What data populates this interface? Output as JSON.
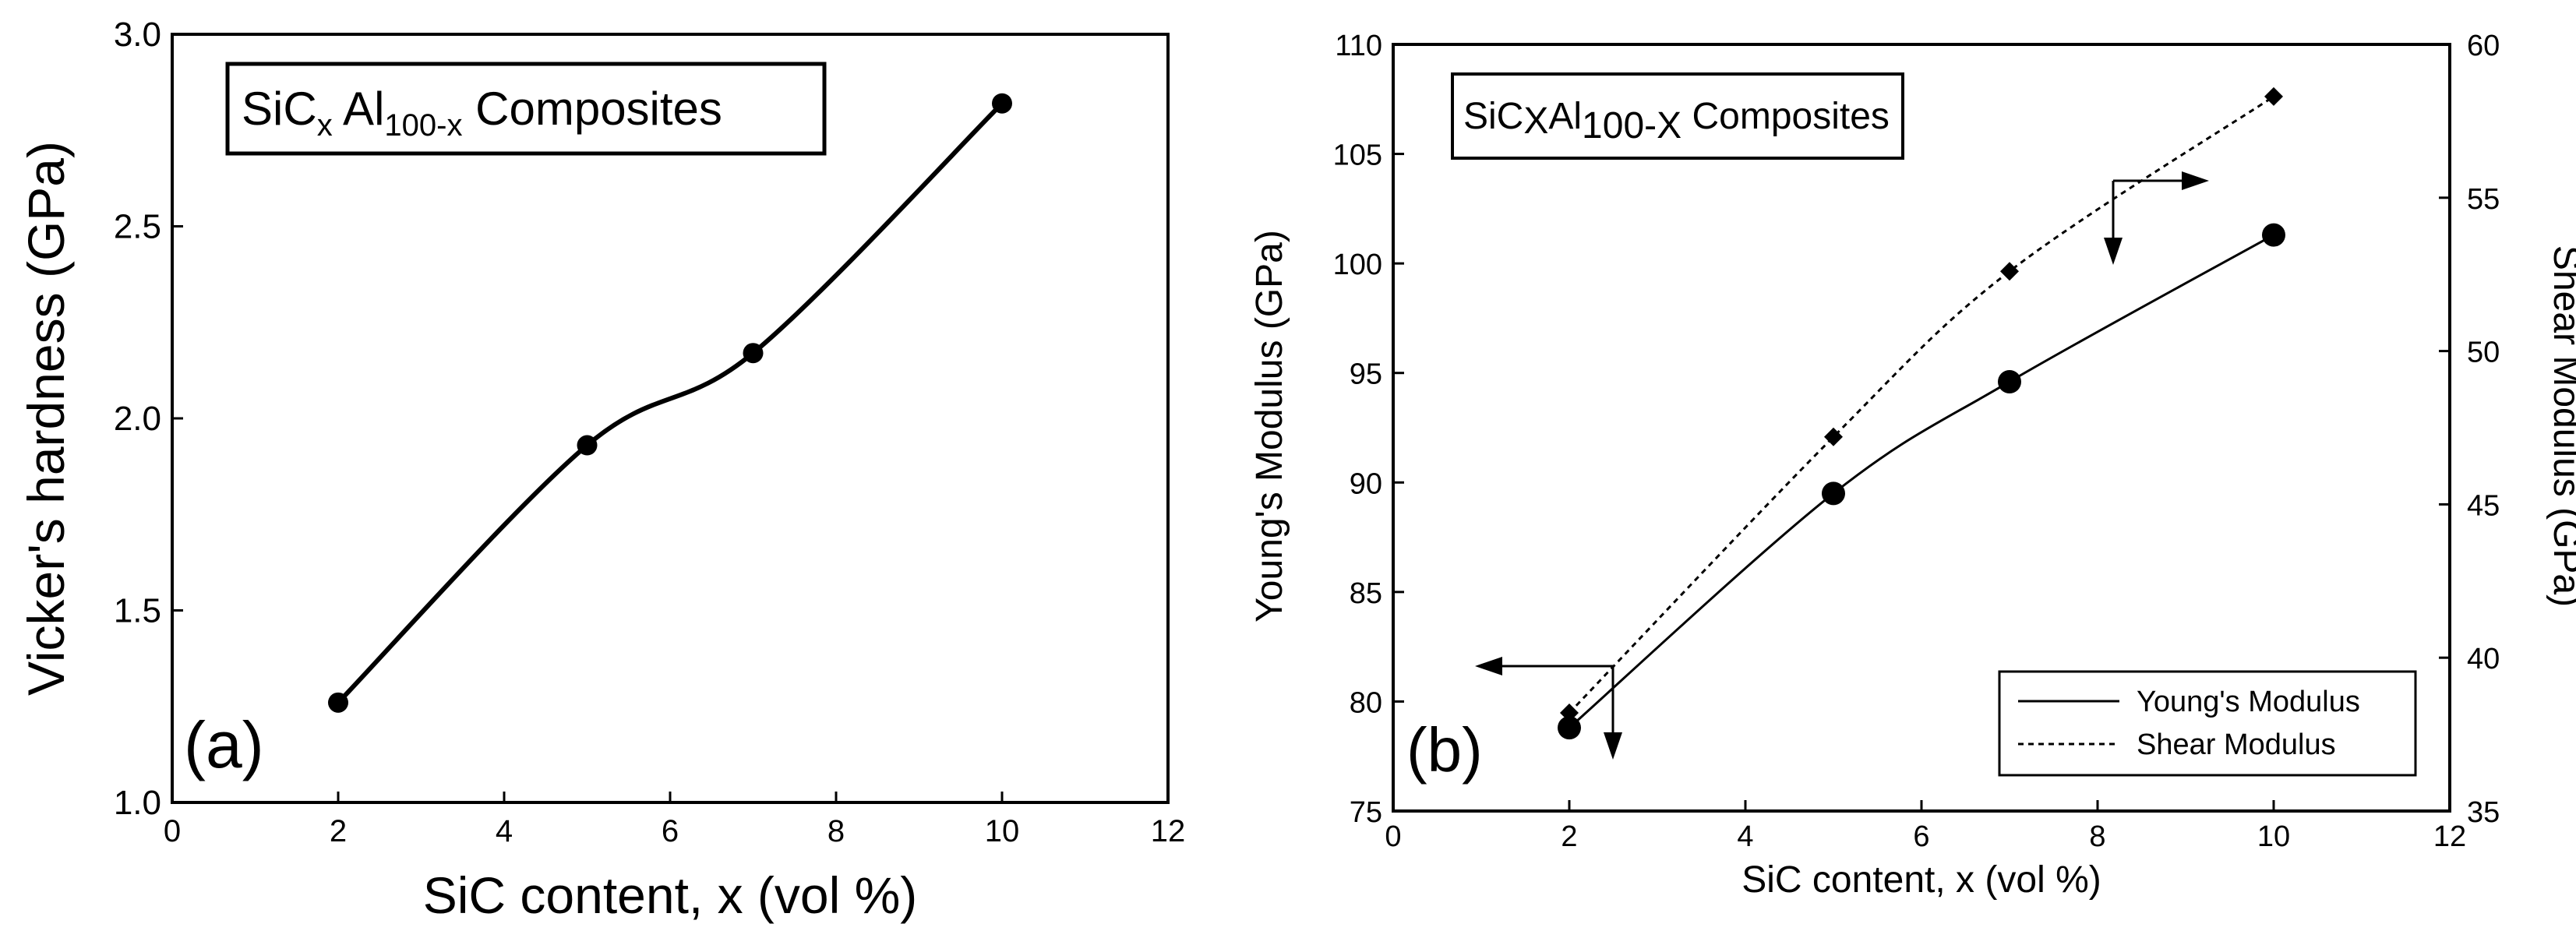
{
  "chart_data": [
    {
      "panel_label": "(a)",
      "type": "line",
      "title": "",
      "legend_box": {
        "base": "SiC",
        "sub1": "x",
        "mid": " Al",
        "sub2": "100-x",
        "tail": " Composites"
      },
      "xlabel": "SiC content, x (vol %)",
      "ylabel": "Vicker's hardness (GPa)",
      "xlim": [
        0,
        12
      ],
      "ylim": [
        1.0,
        3.0
      ],
      "x_ticks": [
        0,
        2,
        4,
        6,
        8,
        10,
        12
      ],
      "y_ticks": [
        1.0,
        1.5,
        2.0,
        2.5,
        3.0
      ],
      "y_tick_labels": [
        "1.0",
        "1.5",
        "2.0",
        "2.5",
        "3.0"
      ],
      "grid": false,
      "series": [
        {
          "name": "Vicker's hardness",
          "marker": "circle",
          "line": "solid",
          "x": [
            2,
            5,
            7,
            10
          ],
          "y": [
            1.26,
            1.93,
            2.17,
            2.82
          ]
        }
      ]
    },
    {
      "panel_label": "(b)",
      "type": "line",
      "title": "",
      "legend_box": {
        "base": "SiC",
        "sub1": "X",
        "mid": "Al",
        "sub2": "100-X",
        "tail": " Composites"
      },
      "xlabel": "SiC content, x (vol %)",
      "ylabel": "Young's Modulus (GPa)",
      "y2label": "Shear Modulus (GPa)",
      "xlim": [
        0,
        12
      ],
      "ylim": [
        75,
        110
      ],
      "y2lim": [
        35,
        60
      ],
      "x_ticks": [
        0,
        2,
        4,
        6,
        8,
        10,
        12
      ],
      "y_ticks": [
        75,
        80,
        85,
        90,
        95,
        100,
        105,
        110
      ],
      "y2_ticks": [
        35,
        40,
        45,
        50,
        55,
        60
      ],
      "grid": false,
      "legend_position": "bottom-right",
      "series": [
        {
          "name": "Young's Modulus",
          "axis": "left",
          "marker": "circle",
          "line": "solid",
          "x": [
            2,
            5,
            7,
            10
          ],
          "y": [
            78.8,
            89.5,
            94.6,
            101.3
          ]
        },
        {
          "name": "Shear Modulus",
          "axis": "right",
          "marker": "diamond",
          "line": "dotted",
          "x": [
            2,
            5,
            7,
            10
          ],
          "y": [
            38.2,
            47.2,
            52.6,
            58.3
          ]
        }
      ]
    }
  ]
}
